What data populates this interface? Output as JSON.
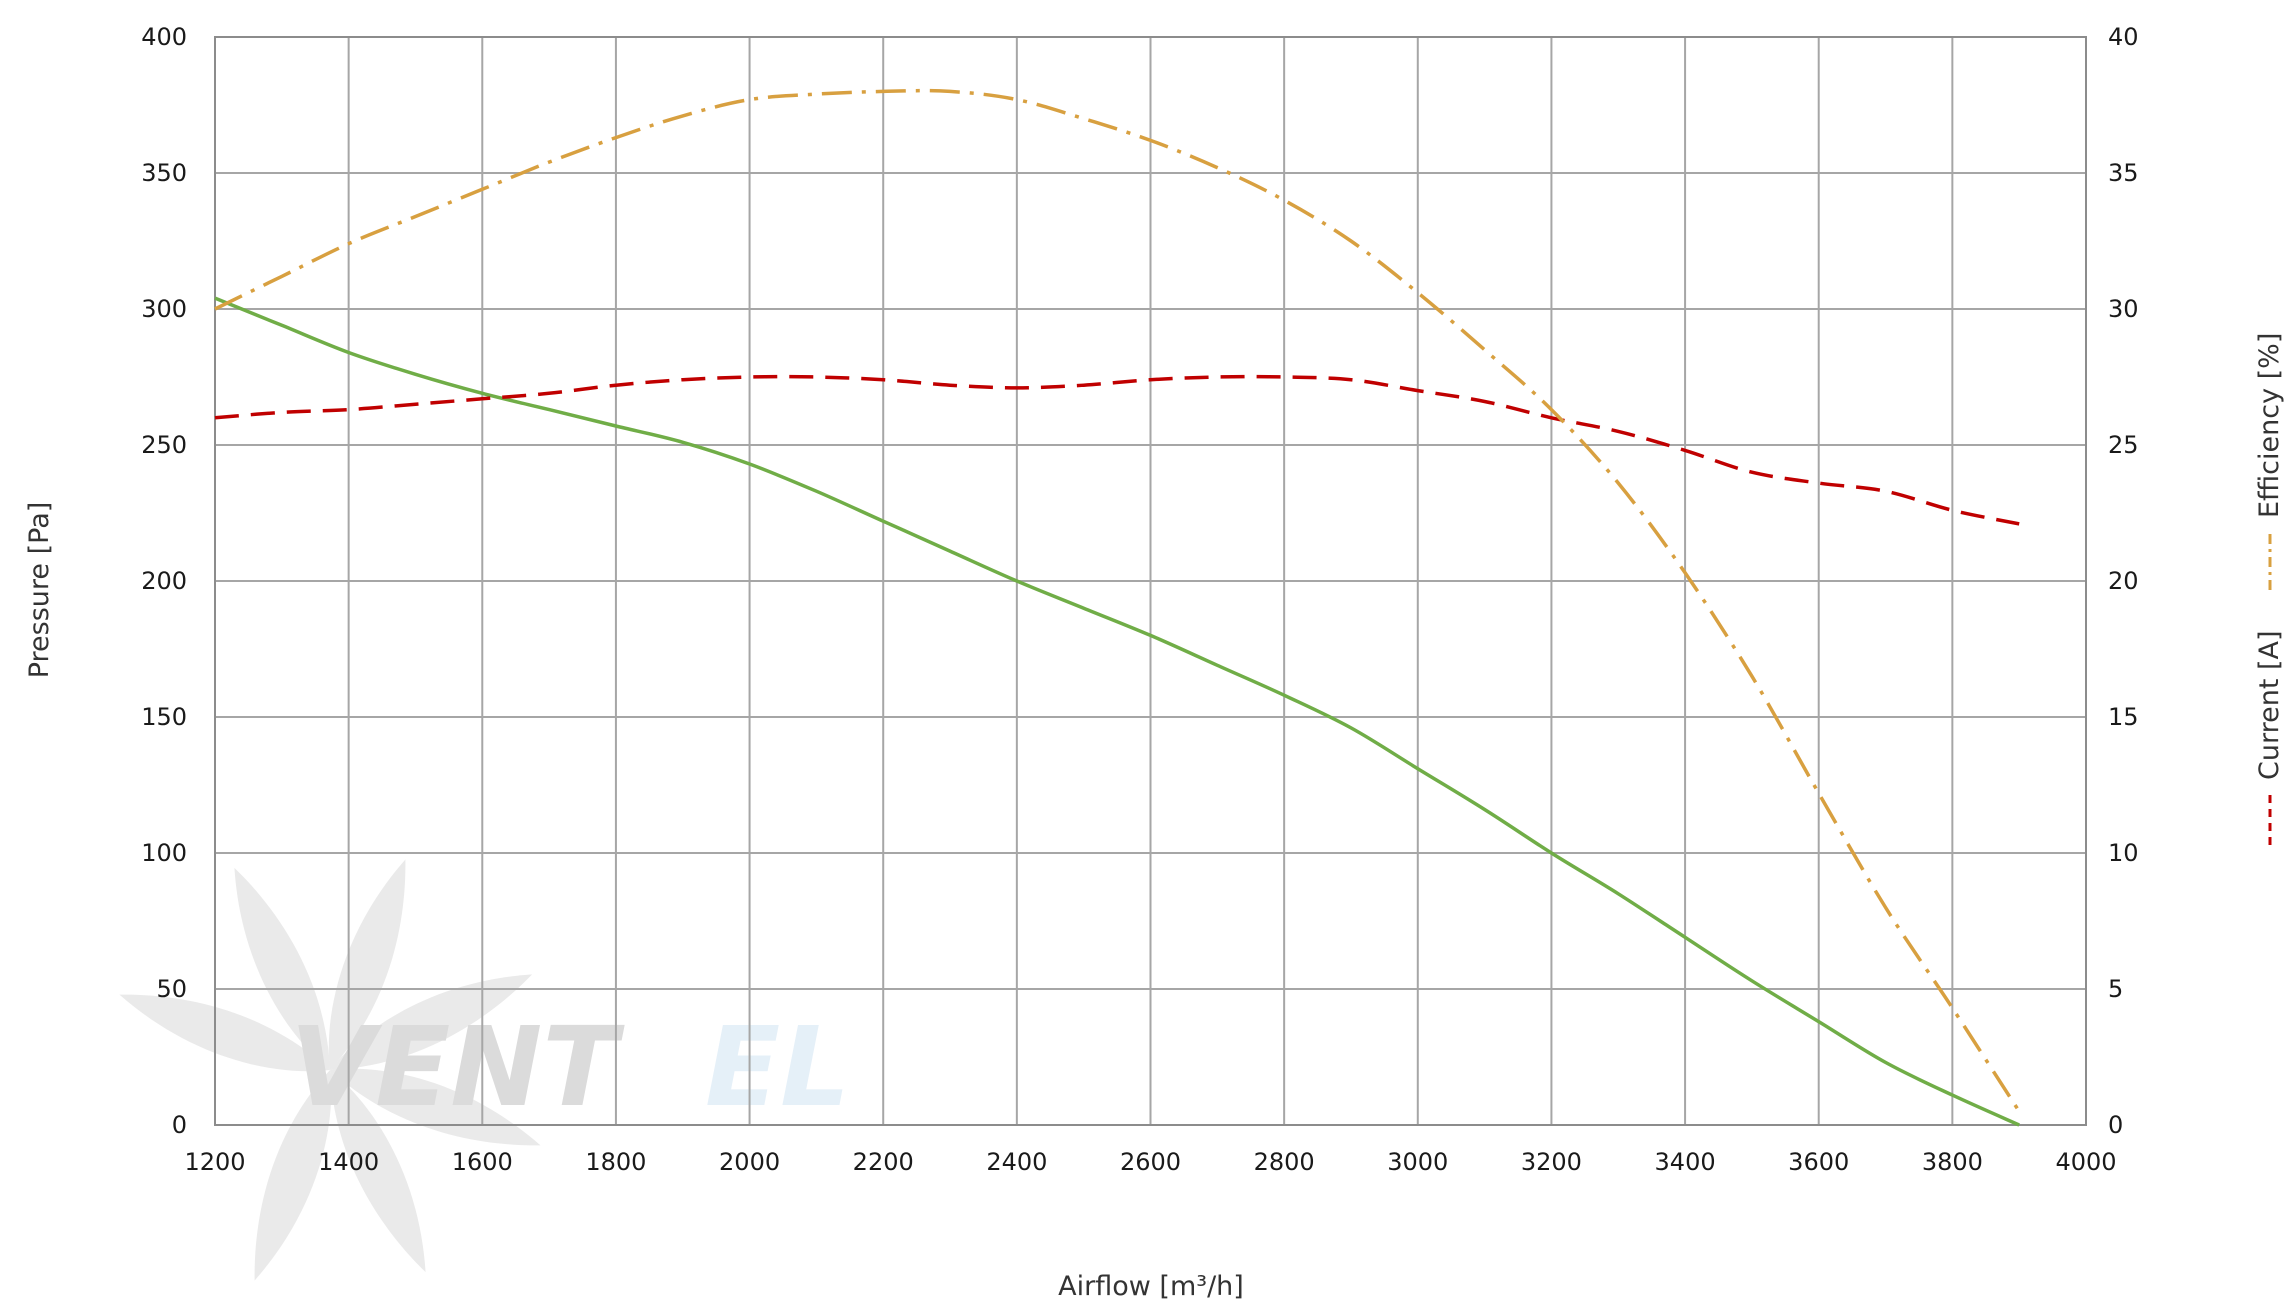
{
  "chart_data": {
    "type": "line",
    "xlabel": "Airflow [m³/h]",
    "ylabel_left": "Pressure [Pa]",
    "ylabel_right_1": "Current [A]",
    "ylabel_right_2": "Efficiency [%]",
    "xlim": [
      1200,
      4000
    ],
    "ylim_left": [
      0,
      400
    ],
    "ylim_right": [
      0,
      40
    ],
    "x_ticks": [
      1200,
      1400,
      1600,
      1800,
      2000,
      2200,
      2400,
      2600,
      2800,
      3000,
      3200,
      3400,
      3600,
      3800,
      4000
    ],
    "y_ticks_left": [
      0,
      50,
      100,
      150,
      200,
      250,
      300,
      350,
      400
    ],
    "y_ticks_right": [
      0,
      5,
      10,
      15,
      20,
      25,
      30,
      35,
      40
    ],
    "grid": true,
    "series": [
      {
        "name": "Pressure [Pa]",
        "axis": "left",
        "color": "#70ad47",
        "style": "solid",
        "x": [
          1200,
          1300,
          1400,
          1500,
          1600,
          1700,
          1800,
          1900,
          2000,
          2100,
          2200,
          2300,
          2400,
          2500,
          2600,
          2700,
          2800,
          2900,
          3000,
          3100,
          3200,
          3300,
          3400,
          3500,
          3600,
          3700,
          3800,
          3900
        ],
        "values": [
          304,
          294,
          284,
          276,
          269,
          263,
          257,
          251,
          243,
          233,
          222,
          211,
          200,
          190,
          180,
          169,
          158,
          146,
          131,
          116,
          100,
          85,
          69,
          53,
          38,
          23,
          11,
          0
        ]
      },
      {
        "name": "Current [A]",
        "axis": "right",
        "color": "#c00000",
        "style": "dashed",
        "x": [
          1200,
          1300,
          1400,
          1500,
          1600,
          1700,
          1800,
          1900,
          2000,
          2100,
          2200,
          2300,
          2400,
          2500,
          2600,
          2700,
          2800,
          2900,
          3000,
          3100,
          3200,
          3300,
          3400,
          3500,
          3600,
          3700,
          3800,
          3900
        ],
        "values": [
          26.0,
          26.2,
          26.3,
          26.5,
          26.7,
          26.9,
          27.2,
          27.4,
          27.5,
          27.5,
          27.4,
          27.2,
          27.1,
          27.2,
          27.4,
          27.5,
          27.5,
          27.4,
          27.0,
          26.6,
          26.0,
          25.5,
          24.8,
          24.0,
          23.6,
          23.3,
          22.6,
          22.1
        ]
      },
      {
        "name": "Efficiency [%]",
        "axis": "right",
        "color": "#d8a040",
        "style": "dash-dot",
        "x": [
          1200,
          1300,
          1400,
          1500,
          1600,
          1700,
          1800,
          1900,
          2000,
          2100,
          2200,
          2300,
          2400,
          2500,
          2600,
          2700,
          2800,
          2900,
          3000,
          3100,
          3200,
          3300,
          3400,
          3500,
          3600,
          3700,
          3800,
          3900
        ],
        "values": [
          30.0,
          31.2,
          32.4,
          33.4,
          34.4,
          35.4,
          36.3,
          37.1,
          37.7,
          37.9,
          38.0,
          38.0,
          37.7,
          37.0,
          36.2,
          35.2,
          34.0,
          32.5,
          30.6,
          28.5,
          26.3,
          23.6,
          20.3,
          16.5,
          12.2,
          8.0,
          4.3,
          0.5
        ]
      }
    ],
    "watermark": {
      "text_main": "VENT",
      "text_accent": "EL",
      "color_main": "#bdbdbd",
      "color_accent": "#cfe3f3"
    }
  }
}
